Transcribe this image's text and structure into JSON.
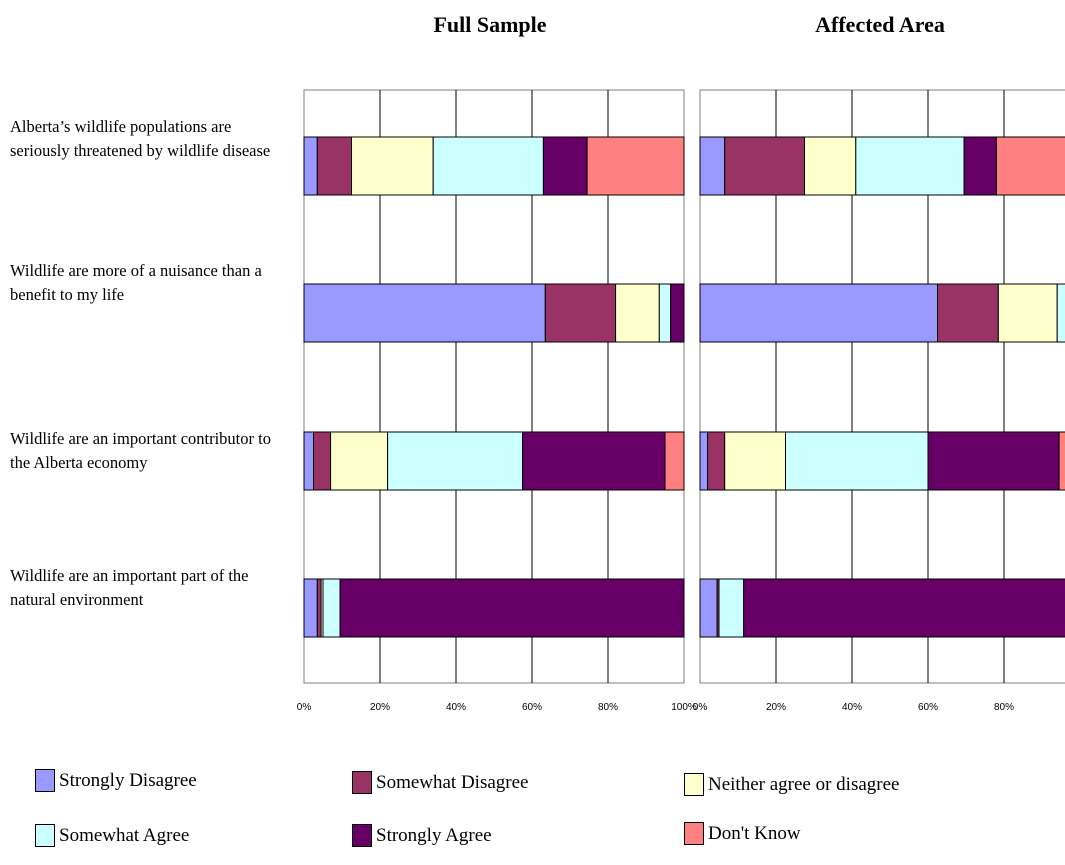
{
  "chart_data": {
    "type": "bar",
    "stacked": "percent",
    "orientation": "horizontal",
    "categories": [
      "Alberta’s wildlife populations are seriously threatened by wildlife disease",
      "Wildlife are more of a nuisance than a benefit to my life",
      "Wildlife are an important contributor to the Alberta economy",
      "Wildlife are an important part of the natural environment"
    ],
    "x_ticks": [
      "0%",
      "20%",
      "40%",
      "60%",
      "80%",
      "100%"
    ],
    "xlim": [
      0,
      100
    ],
    "grid": true,
    "legend_position": "bottom",
    "legend": [
      {
        "name": "Strongly Disagree",
        "color": "#9999FF"
      },
      {
        "name": "Somewhat Disagree",
        "color": "#993366"
      },
      {
        "name": "Neither agree or disagree",
        "color": "#FFFFCC"
      },
      {
        "name": "Somewhat Agree",
        "color": "#CCFFFF"
      },
      {
        "name": "Strongly Agree",
        "color": "#660066"
      },
      {
        "name": "Don't Know",
        "color": "#FF8080"
      }
    ],
    "panels": [
      {
        "title": "Full Sample",
        "values": [
          [
            3.5,
            9,
            21.5,
            29,
            11.5,
            25.5
          ],
          [
            63.5,
            18.5,
            11.5,
            3,
            3.5,
            0
          ],
          [
            2.5,
            4.5,
            15,
            35.5,
            37.5,
            5
          ],
          [
            3.5,
            1,
            0.5,
            4.5,
            90.5,
            0
          ]
        ]
      },
      {
        "title": "Affected Area",
        "values": [
          [
            6.5,
            21,
            13.5,
            28.5,
            8.5,
            22
          ],
          [
            62.5,
            16,
            15.5,
            3.5,
            2.5,
            0
          ],
          [
            2,
            4.5,
            16,
            37.5,
            34.5,
            5.5
          ],
          [
            4.5,
            0.5,
            0,
            6.5,
            88.5,
            0
          ]
        ]
      }
    ]
  }
}
